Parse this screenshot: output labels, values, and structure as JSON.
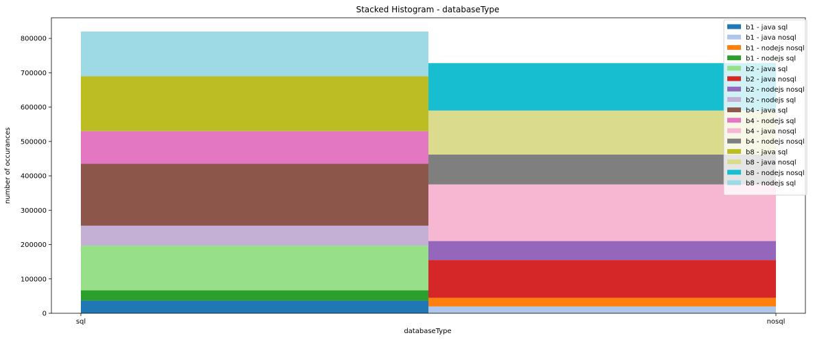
{
  "chart_data": {
    "type": "bar",
    "stacked": true,
    "title": "Stacked Histogram - databaseType",
    "xlabel": "databaseType",
    "ylabel": "number of occurances",
    "categories": [
      "sql",
      "nosql"
    ],
    "ylim": [
      0,
      860000
    ],
    "yticks": [
      0,
      100000,
      200000,
      300000,
      400000,
      500000,
      600000,
      700000,
      800000
    ],
    "ytick_labels": [
      "0",
      "100000",
      "200000",
      "300000",
      "400000",
      "500000",
      "600000",
      "700000",
      "800000"
    ],
    "grid": false,
    "legend_position": "top-right",
    "series": [
      {
        "name": "b1 - java sql",
        "color": "#1f77b4",
        "values": [
          37000,
          0
        ]
      },
      {
        "name": "b1 - java nosql",
        "color": "#aec7e8",
        "values": [
          0,
          20000
        ]
      },
      {
        "name": "b1 - nodejs nosql",
        "color": "#ff7f0e",
        "values": [
          0,
          25000
        ]
      },
      {
        "name": "b1 - nodejs sql",
        "color": "#2ca02c",
        "values": [
          30000,
          0
        ]
      },
      {
        "name": "b2 - java sql",
        "color": "#98df8a",
        "values": [
          130000,
          0
        ]
      },
      {
        "name": "b2 - java nosql",
        "color": "#d62728",
        "values": [
          0,
          110000
        ]
      },
      {
        "name": "b2 - nodejs nosql",
        "color": "#9467bd",
        "values": [
          0,
          55000
        ]
      },
      {
        "name": "b2 - nodejs sql",
        "color": "#c5b0d5",
        "values": [
          58000,
          0
        ]
      },
      {
        "name": "b4 - java sql",
        "color": "#8c564b",
        "values": [
          180000,
          0
        ]
      },
      {
        "name": "b4 - nodejs sql",
        "color": "#e377c2",
        "values": [
          95000,
          0
        ]
      },
      {
        "name": "b4 - java nosql",
        "color": "#f7b6d2",
        "values": [
          0,
          165000
        ]
      },
      {
        "name": "b4 - nodejs nosql",
        "color": "#7f7f7f",
        "values": [
          0,
          87000
        ]
      },
      {
        "name": "b8 - java sql",
        "color": "#bcbd22",
        "values": [
          160000,
          0
        ]
      },
      {
        "name": "b8 - java nosql",
        "color": "#dbdb8d",
        "values": [
          0,
          128000
        ]
      },
      {
        "name": "b8 - nodejs nosql",
        "color": "#17becf",
        "values": [
          0,
          138000
        ]
      },
      {
        "name": "b8 - nodejs sql",
        "color": "#9edae5",
        "values": [
          130000,
          0
        ]
      }
    ]
  }
}
